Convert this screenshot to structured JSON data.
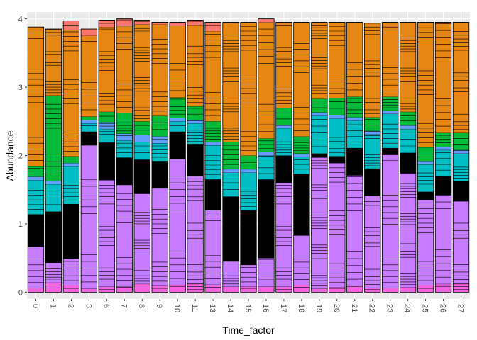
{
  "chart_data": {
    "type": "bar",
    "stacked": true,
    "xlabel": "Time_factor",
    "ylabel": "Abundance",
    "ylim": [
      -0.1,
      4.1
    ],
    "yticks": [
      0,
      1,
      2,
      3,
      4
    ],
    "grid": true,
    "legend": "none",
    "categories": [
      "0",
      "1",
      "2",
      "3",
      "6",
      "7",
      "8",
      "9",
      "10",
      "11",
      "13",
      "14",
      "15",
      "16",
      "17",
      "18",
      "19",
      "20",
      "21",
      "22",
      "23",
      "24",
      "25",
      "26",
      "27"
    ],
    "x_tick_rotation": "vertical",
    "colors": {
      "panel_background": "#EBEBEB",
      "grid": "#FFFFFF",
      "segment_outline": "#000000",
      "pink": "#F564E3",
      "violet": "#C77CFF",
      "black": "#000000",
      "teal": "#00BFC4",
      "blue": "#619CFF",
      "green": "#00BA38",
      "orange": "#E68613",
      "salmon": "#F8766D"
    },
    "groups": [
      "pink",
      "violet",
      "black",
      "teal",
      "blue",
      "green",
      "orange",
      "salmon"
    ],
    "series": [
      {
        "color": "pink",
        "values": [
          0.06,
          0.14,
          0.1,
          0.05,
          0.08,
          0.08,
          0.12,
          0.09,
          0.1,
          0.13,
          0.11,
          0.08,
          0.08,
          0.08,
          0.08,
          0.1,
          0.05,
          0.07,
          0.09,
          0.06,
          0.06,
          0.07,
          0.1,
          0.12,
          0.13
        ]
      },
      {
        "color": "violet",
        "values": [
          0.6,
          0.29,
          0.39,
          2.1,
          1.56,
          1.49,
          1.32,
          1.43,
          1.85,
          1.57,
          1.09,
          0.37,
          0.32,
          0.42,
          1.52,
          0.73,
          1.93,
          1.82,
          1.62,
          1.35,
          1.95,
          1.67,
          1.25,
          1.3,
          1.2
        ]
      },
      {
        "color": "black",
        "values": [
          0.48,
          0.75,
          0.8,
          0.2,
          0.55,
          0.4,
          0.5,
          0.4,
          0.4,
          0.47,
          0.45,
          0.95,
          0.8,
          1.15,
          0.4,
          0.9,
          0.05,
          0.1,
          0.4,
          0.4,
          0.1,
          0.3,
          0.12,
          0.28,
          0.3
        ]
      },
      {
        "color": "teal",
        "values": [
          0.5,
          0.4,
          0.55,
          0.12,
          0.2,
          0.25,
          0.26,
          0.26,
          0.15,
          0.3,
          0.5,
          0.35,
          0.55,
          0.35,
          0.4,
          0.25,
          0.55,
          0.55,
          0.4,
          0.5,
          0.5,
          0.35,
          0.4,
          0.38,
          0.4
        ]
      },
      {
        "color": "blue",
        "values": [
          0.05,
          0.05,
          0.05,
          0.05,
          0.1,
          0.1,
          0.1,
          0.1,
          0.05,
          0.05,
          0.05,
          0.05,
          0.05,
          0.05,
          0.05,
          0.05,
          0.05,
          0.05,
          0.05,
          0.05,
          0.05,
          0.05,
          0.05,
          0.05,
          0.05
        ]
      },
      {
        "color": "green",
        "values": [
          0.15,
          1.25,
          0.1,
          0.05,
          0.15,
          0.3,
          0.2,
          0.3,
          0.3,
          0.2,
          0.3,
          0.4,
          0.2,
          0.2,
          0.25,
          0.25,
          0.2,
          0.25,
          0.3,
          0.2,
          0.2,
          0.2,
          0.2,
          0.2,
          0.25
        ]
      },
      {
        "color": "orange",
        "values": [
          2.04,
          0.97,
          1.85,
          1.18,
          1.24,
          1.28,
          1.42,
          1.34,
          1.05,
          1.19,
          1.32,
          1.74,
          1.94,
          1.7,
          1.25,
          1.67,
          1.12,
          1.11,
          1.09,
          1.38,
          1.09,
          1.31,
          1.83,
          1.62,
          1.62
        ]
      },
      {
        "color": "salmon",
        "values": [
          0.0,
          0.0,
          0.13,
          0.1,
          0.1,
          0.1,
          0.06,
          0.03,
          0.05,
          0.07,
          0.13,
          0.01,
          0.01,
          0.05,
          0.0,
          0.0,
          0.0,
          0.0,
          0.0,
          0.0,
          0.0,
          0.0,
          0.0,
          0.0,
          0.0
        ]
      }
    ]
  }
}
